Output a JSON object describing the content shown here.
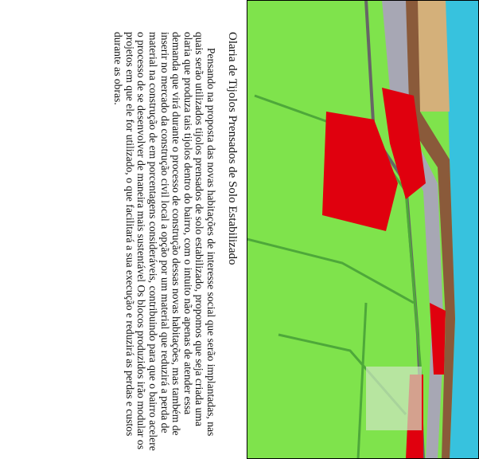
{
  "title": "Olaria de Tijolos Prensados de Solo Estabilizado",
  "paragraph": "Pensando na proposta das novas habitações de interesse social que serão implantadas, nas quais serão utilizados tijolos prensados de solo estabilizado, propomos que seja criada uma olaria que produza tais tijolos dentro do bairro, com o intuito não apenas de atender essa demanda que virá durante o processo de construção dessas novas habitações, mas também de inserir no mercado da construção civil local a opção por um material que reduzirá a perda de material na construção de em porcentagens consideráveis, contribuindo para que o bairro acelere o processo de se desenvolver de maneira mais sustentável Os blocos produzidos irão modular os projetos em que ele for utilizado, o que facilitará a sua execução e reduzirá as perdas e custos durante as obras."
}
